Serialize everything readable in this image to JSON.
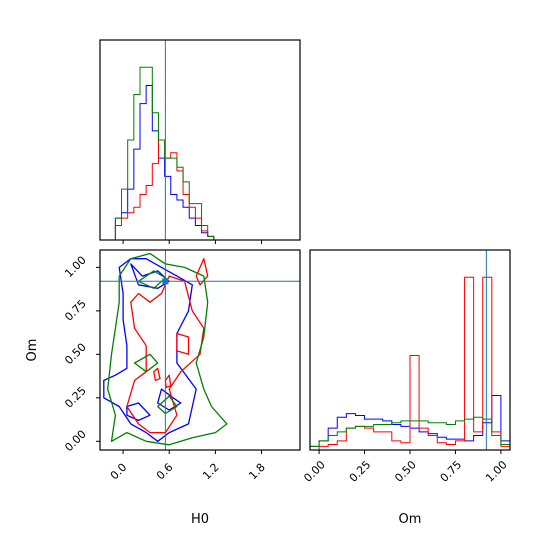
{
  "chart_data": {
    "type": "corner",
    "parameters": [
      "H0",
      "Om"
    ],
    "truth": {
      "H0": 0.55,
      "Om": 0.92
    },
    "colors": {
      "truth": "#1f77b4",
      "series": [
        "#0000ff",
        "#ff0000",
        "#008000"
      ]
    },
    "panels": [
      {
        "id": "hist-H0",
        "type": "histogram",
        "xlabel": "",
        "xlim": [
          -0.3,
          2.3
        ],
        "ylim": [
          0,
          1.1
        ],
        "xticks": [
          0.0,
          0.6,
          1.2,
          1.8
        ],
        "bin_edges": [
          -0.1,
          -0.02,
          0.06,
          0.14,
          0.22,
          0.3,
          0.38,
          0.46,
          0.54,
          0.62,
          0.7,
          0.78,
          0.86,
          0.94,
          1.02,
          1.1,
          1.18
        ],
        "series": [
          {
            "color": "blue",
            "values": [
              0.12,
              0.15,
              0.28,
              0.5,
              0.75,
              0.85,
              0.6,
              0.45,
              0.35,
              0.25,
              0.22,
              0.18,
              0.12,
              0.08,
              0.04,
              0.02
            ]
          },
          {
            "color": "red",
            "values": [
              0.08,
              0.12,
              0.15,
              0.18,
              0.25,
              0.3,
              0.42,
              0.55,
              0.45,
              0.48,
              0.38,
              0.25,
              0.18,
              0.12,
              0.05,
              0.02
            ]
          },
          {
            "color": "green",
            "values": [
              0.12,
              0.28,
              0.55,
              0.8,
              0.95,
              0.95,
              0.7,
              0.55,
              0.45,
              0.45,
              0.4,
              0.32,
              0.2,
              0.2,
              0.08,
              0.02
            ]
          }
        ]
      },
      {
        "id": "contour-H0-Om",
        "type": "contour",
        "xlabel": "H0",
        "ylabel": "Om",
        "xlim": [
          -0.3,
          2.3
        ],
        "ylim": [
          -0.05,
          1.1
        ],
        "xticks": [
          0.0,
          0.6,
          1.2,
          1.8
        ],
        "yticks": [
          0.0,
          0.25,
          0.5,
          0.75,
          1.0
        ],
        "series": [
          {
            "color": "blue",
            "contours": [
              [
                [
                  -0.25,
                  0.35
                ],
                [
                  -0.1,
                  0.38
                ],
                [
                  0.05,
                  0.42
                ],
                [
                  0.05,
                  0.55
                ],
                [
                  0.0,
                  0.7
                ],
                [
                  0.0,
                  0.85
                ],
                [
                  -0.05,
                  1.0
                ],
                [
                  0.1,
                  1.05
                ],
                [
                  0.3,
                  1.05
                ],
                [
                  0.5,
                  1.0
                ],
                [
                  0.7,
                  0.95
                ],
                [
                  0.9,
                  0.9
                ],
                [
                  0.85,
                  0.75
                ],
                [
                  0.7,
                  0.62
                ],
                [
                  0.7,
                  0.45
                ],
                [
                  0.95,
                  0.3
                ],
                [
                  0.85,
                  0.1
                ],
                [
                  0.6,
                  0.05
                ],
                [
                  0.45,
                  0.0
                ],
                [
                  0.3,
                  0.05
                ],
                [
                  0.1,
                  0.1
                ],
                [
                  -0.05,
                  0.2
                ],
                [
                  -0.25,
                  0.25
                ]
              ],
              [
                [
                  0.05,
                  0.2
                ],
                [
                  0.2,
                  0.22
                ],
                [
                  0.35,
                  0.15
                ],
                [
                  0.2,
                  0.12
                ],
                [
                  0.05,
                  0.15
                ]
              ],
              [
                [
                  0.1,
                  1.02
                ],
                [
                  0.25,
                  0.95
                ],
                [
                  0.45,
                  0.98
                ],
                [
                  0.6,
                  0.92
                ],
                [
                  0.45,
                  0.88
                ],
                [
                  0.2,
                  0.9
                ]
              ],
              [
                [
                  0.5,
                  0.3
                ],
                [
                  0.65,
                  0.25
                ],
                [
                  0.75,
                  0.22
                ],
                [
                  0.6,
                  0.18
                ],
                [
                  0.45,
                  0.22
                ]
              ]
            ]
          },
          {
            "color": "red",
            "contours": [
              [
                [
                  0.05,
                  0.2
                ],
                [
                  0.15,
                  0.35
                ],
                [
                  0.3,
                  0.4
                ],
                [
                  0.3,
                  0.55
                ],
                [
                  0.15,
                  0.65
                ],
                [
                  0.1,
                  0.8
                ],
                [
                  0.2,
                  0.85
                ],
                [
                  0.35,
                  0.8
                ],
                [
                  0.5,
                  0.85
                ],
                [
                  0.6,
                  0.95
                ],
                [
                  0.8,
                  0.92
                ],
                [
                  0.9,
                  0.75
                ],
                [
                  1.05,
                  0.65
                ],
                [
                  1.0,
                  0.5
                ],
                [
                  0.75,
                  0.4
                ],
                [
                  0.6,
                  0.3
                ],
                [
                  0.7,
                  0.15
                ],
                [
                  0.55,
                  0.05
                ],
                [
                  0.35,
                  0.05
                ],
                [
                  0.2,
                  0.1
                ]
              ],
              [
                [
                  0.95,
                  0.95
                ],
                [
                  1.05,
                  1.05
                ],
                [
                  1.1,
                  0.95
                ],
                [
                  1.0,
                  0.9
                ]
              ],
              [
                [
                  0.7,
                  0.62
                ],
                [
                  0.85,
                  0.6
                ],
                [
                  0.85,
                  0.5
                ],
                [
                  0.7,
                  0.52
                ]
              ],
              [
                [
                  0.4,
                  0.4
                ],
                [
                  0.45,
                  0.42
                ],
                [
                  0.48,
                  0.36
                ],
                [
                  0.42,
                  0.35
                ]
              ],
              [
                [
                  0.55,
                  0.35
                ],
                [
                  0.6,
                  0.38
                ],
                [
                  0.62,
                  0.32
                ],
                [
                  0.56,
                  0.31
                ]
              ]
            ]
          },
          {
            "color": "green",
            "contours": [
              [
                [
                  -0.15,
                  0.0
                ],
                [
                  -0.1,
                  0.15
                ],
                [
                  -0.2,
                  0.3
                ],
                [
                  -0.15,
                  0.5
                ],
                [
                  -0.1,
                  0.65
                ],
                [
                  -0.05,
                  0.8
                ],
                [
                  -0.05,
                  0.95
                ],
                [
                  0.1,
                  1.05
                ],
                [
                  0.35,
                  1.08
                ],
                [
                  0.55,
                  1.02
                ],
                [
                  0.8,
                  1.0
                ],
                [
                  1.05,
                  0.95
                ],
                [
                  1.1,
                  0.8
                ],
                [
                  1.05,
                  0.6
                ],
                [
                  0.95,
                  0.45
                ],
                [
                  1.05,
                  0.3
                ],
                [
                  1.15,
                  0.2
                ],
                [
                  1.35,
                  0.1
                ],
                [
                  1.2,
                  0.05
                ],
                [
                  0.9,
                  0.02
                ],
                [
                  0.6,
                  -0.02
                ],
                [
                  0.3,
                  0.0
                ],
                [
                  0.05,
                  0.05
                ]
              ],
              [
                [
                  0.15,
                  0.45
                ],
                [
                  0.35,
                  0.5
                ],
                [
                  0.45,
                  0.45
                ],
                [
                  0.3,
                  0.4
                ]
              ],
              [
                [
                  0.2,
                  0.92
                ],
                [
                  0.4,
                  0.98
                ],
                [
                  0.55,
                  0.94
                ],
                [
                  0.4,
                  0.88
                ]
              ],
              [
                [
                  0.45,
                  0.2
                ],
                [
                  0.6,
                  0.26
                ],
                [
                  0.7,
                  0.2
                ],
                [
                  0.55,
                  0.16
                ]
              ]
            ]
          }
        ]
      },
      {
        "id": "hist-Om",
        "type": "histogram",
        "xlabel": "Om",
        "xlim": [
          -0.05,
          1.05
        ],
        "ylim": [
          0,
          1.1
        ],
        "xticks": [
          0.0,
          0.25,
          0.5,
          0.75,
          1.0
        ],
        "bin_edges": [
          -0.05,
          0.0,
          0.05,
          0.1,
          0.15,
          0.2,
          0.25,
          0.3,
          0.35,
          0.4,
          0.45,
          0.5,
          0.55,
          0.6,
          0.65,
          0.7,
          0.75,
          0.8,
          0.85,
          0.9,
          0.95,
          1.0,
          1.05
        ],
        "series": [
          {
            "color": "blue",
            "values": [
              0.02,
              0.05,
              0.12,
              0.18,
              0.2,
              0.19,
              0.17,
              0.17,
              0.16,
              0.14,
              0.13,
              0.12,
              0.1,
              0.09,
              0.07,
              0.06,
              0.06,
              0.05,
              0.08,
              0.15,
              0.3,
              0.05
            ]
          },
          {
            "color": "red",
            "values": [
              0.0,
              0.02,
              0.03,
              0.05,
              0.12,
              0.13,
              0.12,
              0.1,
              0.1,
              0.05,
              0.04,
              0.52,
              0.12,
              0.08,
              0.04,
              0.03,
              0.05,
              0.95,
              0.1,
              0.95,
              0.1,
              0.02
            ]
          },
          {
            "color": "green",
            "values": [
              0.02,
              0.05,
              0.08,
              0.1,
              0.12,
              0.13,
              0.13,
              0.14,
              0.14,
              0.15,
              0.16,
              0.16,
              0.16,
              0.15,
              0.15,
              0.14,
              0.16,
              0.17,
              0.18,
              0.17,
              0.08,
              0.03
            ]
          }
        ]
      }
    ]
  }
}
